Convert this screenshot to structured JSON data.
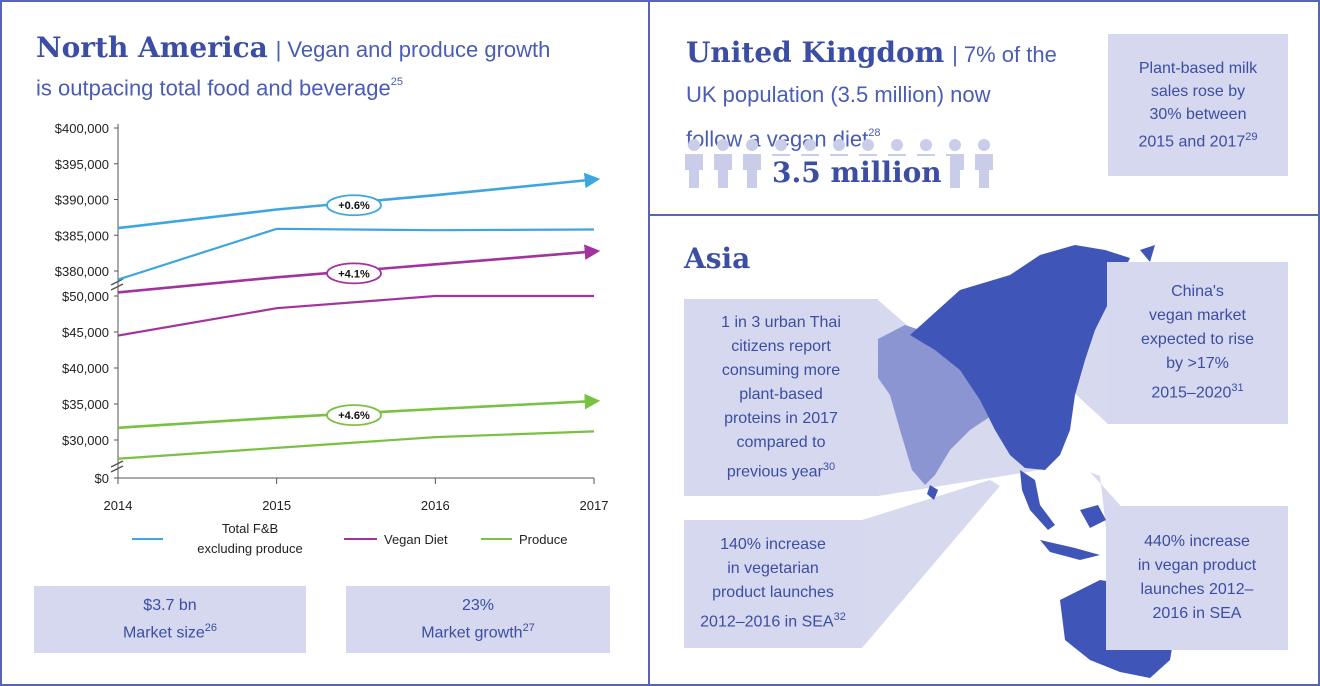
{
  "north_america": {
    "title": "North America",
    "subtitle_line1": "| Vegan and produce growth",
    "subtitle_line2": "is outpacing total food and beverage",
    "subtitle_sup": "25",
    "box1_value": "$3.7 bn",
    "box1_label": "Market size",
    "box1_sup": "26",
    "box2_value": "23%",
    "box2_label": "Market growth",
    "box2_sup": "27"
  },
  "uk": {
    "title": "United Kingdom",
    "subtitle_line1": "| 7% of the",
    "subtitle_line2": "UK population (3.5 million) now",
    "subtitle_line3": "follow a vegan diet",
    "subtitle_sup": "28",
    "big_number": "3.5 million",
    "box_lines": [
      "Plant-based milk",
      "sales rose by",
      "30% between",
      "2015 and 2017"
    ],
    "box_sup": "29"
  },
  "asia": {
    "title": "Asia",
    "thai_lines": [
      "1 in 3 urban Thai",
      "citizens report",
      "consuming more",
      "plant-based",
      "proteins in 2017",
      "compared to",
      "previous year"
    ],
    "thai_sup": "30",
    "china_lines": [
      "China's",
      "vegan market",
      "expected to rise",
      "by >17%",
      "2015–2020"
    ],
    "china_sup": "31",
    "veg_lines": [
      "140% increase",
      "in vegetarian",
      "product launches",
      "2012–2016 in SEA"
    ],
    "veg_sup": "32",
    "vegan_lines": [
      "440% increase",
      "in vegan product",
      "launches 2012–",
      "2016 in SEA"
    ]
  },
  "chart_data": {
    "type": "line",
    "x": [
      2014,
      2015,
      2016,
      2017
    ],
    "xtick_labels": [
      "2014",
      "2015",
      "2016",
      "2017"
    ],
    "upper_ytick_labels": [
      "$400,000",
      "$395,000",
      "$390,000",
      "$385,000",
      "$380,000"
    ],
    "lower_ytick_labels": [
      "$50,000",
      "$45,000",
      "$40,000",
      "$35,000",
      "$30,000",
      "$0"
    ],
    "series": [
      {
        "name": "Total F&B excluding produce",
        "legend_line1": "Total F&B",
        "legend_line2": "excluding produce",
        "color": "#3ea6df",
        "values": [
          378800,
          385900,
          385700,
          385800
        ],
        "trend": [
          386000,
          388600,
          390600,
          392800
        ],
        "trend_label": "+0.6%"
      },
      {
        "name": "Vegan Diet",
        "color": "#a2339e",
        "values": [
          44500,
          48300,
          50000,
          50000
        ],
        "trend": [
          50500,
          52600,
          54400,
          56200
        ],
        "trend_label": "+4.1%"
      },
      {
        "name": "Produce",
        "color": "#7ac142",
        "values": [
          27400,
          28900,
          30400,
          31200
        ],
        "trend": [
          31700,
          33100,
          34300,
          35400
        ],
        "trend_label": "+4.6%"
      }
    ],
    "ylim_upper": [
      380000,
      400000
    ],
    "ylim_lower": [
      0,
      50000
    ],
    "axis_break": true,
    "grid": false,
    "legend_position": "bottom"
  }
}
